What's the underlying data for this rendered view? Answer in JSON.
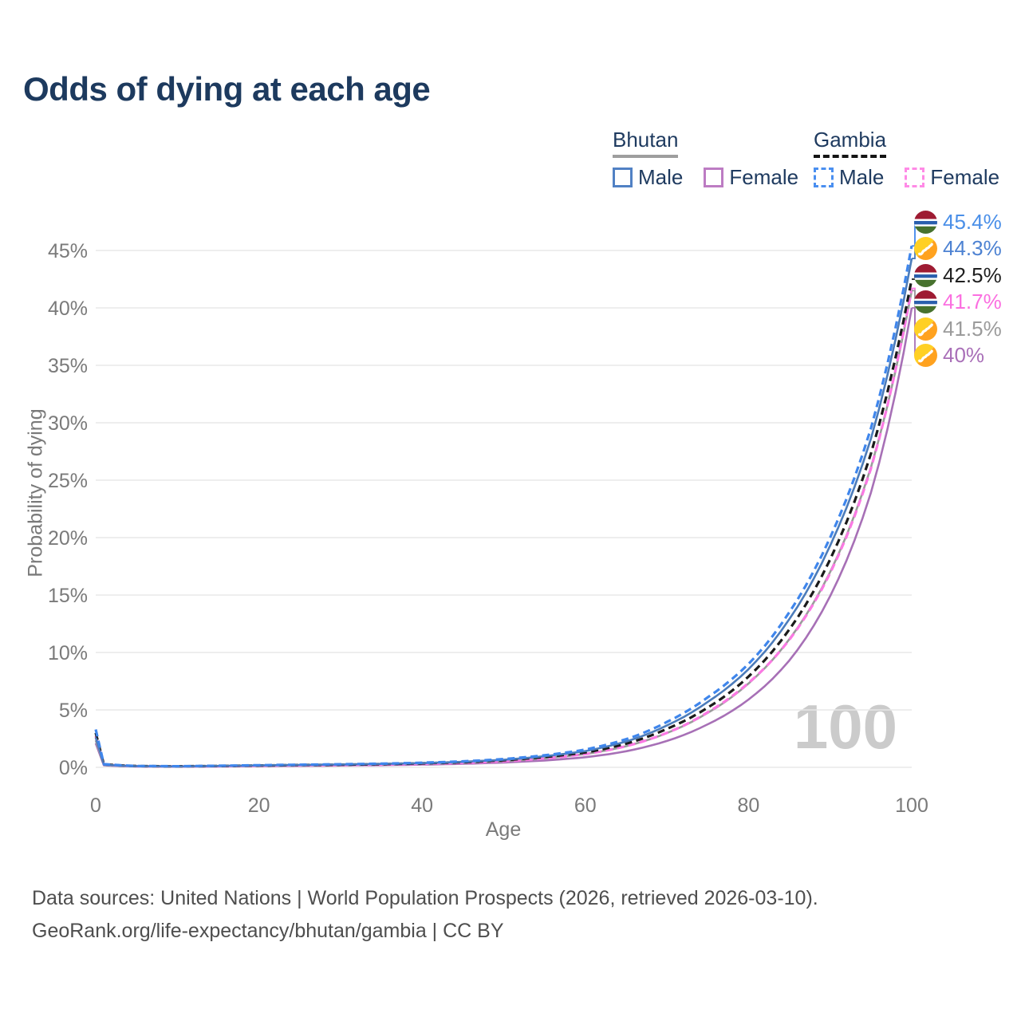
{
  "title": "Odds of dying at each age",
  "legend": {
    "groups": [
      {
        "country": "Bhutan",
        "underline": "solid",
        "underline_color": "#9e9e9e",
        "items": [
          {
            "label": "Male",
            "color": "#5181c4",
            "dashed": false
          },
          {
            "label": "Female",
            "color": "#bd7cc3",
            "dashed": false
          }
        ]
      },
      {
        "country": "Gambia",
        "underline": "dashed",
        "underline_color": "#141414",
        "items": [
          {
            "label": "Male",
            "color": "#4a8ff0",
            "dashed": true
          },
          {
            "label": "Female",
            "color": "#ff8ae6",
            "dashed": true
          }
        ]
      }
    ]
  },
  "axes": {
    "x_label": "Age",
    "y_label": "Probability of dying"
  },
  "watermark": "100",
  "footer": {
    "line1": "Data sources: United Nations | World Population Prospects (2026, retrieved 2026-03-10).",
    "line2": "GeoRank.org/life-expectancy/bhutan/gambia | CC BY"
  },
  "chart_data": {
    "type": "line",
    "title": "Odds of dying at each age",
    "xlabel": "Age",
    "ylabel": "Probability of dying",
    "xlim": [
      0,
      100
    ],
    "ylim": [
      0,
      47.5
    ],
    "x_ticks": [
      0,
      20,
      40,
      60,
      80,
      100
    ],
    "y_ticks_pct": [
      0,
      5,
      10,
      15,
      20,
      25,
      30,
      35,
      40,
      45
    ],
    "grid": true,
    "legend_position": "top-right",
    "ages": [
      0,
      1,
      5,
      10,
      15,
      20,
      25,
      30,
      35,
      40,
      45,
      50,
      55,
      60,
      65,
      70,
      75,
      80,
      85,
      90,
      95,
      100
    ],
    "series": [
      {
        "name": "Gambia Male",
        "country": "Gambia",
        "sex": "Male",
        "color": "#3f86ec",
        "dashed": true,
        "end_value": 45.4,
        "end_label": "45.4%",
        "label_color": "#4a8fe8",
        "flag": "gambia",
        "values": [
          3.3,
          0.28,
          0.12,
          0.1,
          0.14,
          0.19,
          0.23,
          0.27,
          0.32,
          0.4,
          0.52,
          0.72,
          1.05,
          1.55,
          2.45,
          3.95,
          6.1,
          9.0,
          13.5,
          20.0,
          29.5,
          45.4
        ]
      },
      {
        "name": "Bhutan Male",
        "country": "Bhutan",
        "sex": "Male",
        "color": "#4c7cba",
        "dashed": false,
        "end_value": 44.3,
        "end_label": "44.3%",
        "label_color": "#4d82d2",
        "flag": "bhutan",
        "values": [
          2.6,
          0.23,
          0.1,
          0.08,
          0.12,
          0.17,
          0.21,
          0.25,
          0.3,
          0.37,
          0.48,
          0.66,
          0.97,
          1.42,
          2.25,
          3.65,
          5.7,
          8.55,
          12.9,
          19.3,
          28.6,
          44.3
        ]
      },
      {
        "name": "Gambia Total",
        "country": "Gambia",
        "sex": "Both",
        "color": "#1a1a1a",
        "dashed": true,
        "end_value": 42.5,
        "end_label": "42.5%",
        "label_color": "#1f1f1f",
        "flag": "gambia",
        "values": [
          3.0,
          0.26,
          0.11,
          0.09,
          0.12,
          0.16,
          0.2,
          0.23,
          0.28,
          0.35,
          0.45,
          0.62,
          0.9,
          1.3,
          2.06,
          3.35,
          5.2,
          7.9,
          12.0,
          18.1,
          27.3,
          42.5
        ]
      },
      {
        "name": "Gambia Female",
        "country": "Gambia",
        "sex": "Female",
        "color": "#fb79e3",
        "dashed": true,
        "end_value": 41.7,
        "end_label": "41.7%",
        "label_color": "#fb6fe0",
        "flag": "gambia",
        "values": [
          2.7,
          0.24,
          0.1,
          0.08,
          0.1,
          0.14,
          0.17,
          0.2,
          0.24,
          0.3,
          0.39,
          0.53,
          0.78,
          1.15,
          1.85,
          3.0,
          4.8,
          7.35,
          11.1,
          16.9,
          26.0,
          41.7
        ]
      },
      {
        "name": "Bhutan Total",
        "country": "Bhutan",
        "sex": "Both",
        "color": "#9b9b9b",
        "dashed": false,
        "end_value": 41.5,
        "end_label": "41.5%",
        "label_color": "#9b9b9b",
        "flag": "bhutan",
        "values": [
          2.35,
          0.21,
          0.09,
          0.07,
          0.1,
          0.14,
          0.17,
          0.2,
          0.25,
          0.31,
          0.4,
          0.54,
          0.79,
          1.16,
          1.84,
          2.99,
          4.75,
          7.3,
          11.15,
          17.0,
          26.1,
          41.5
        ]
      },
      {
        "name": "Bhutan Female",
        "country": "Bhutan",
        "sex": "Female",
        "color": "#a770b6",
        "dashed": false,
        "end_value": 40.0,
        "end_label": "40%",
        "label_color": "#a96fb8",
        "flag": "bhutan",
        "values": [
          2.1,
          0.18,
          0.08,
          0.06,
          0.08,
          0.11,
          0.13,
          0.16,
          0.19,
          0.24,
          0.31,
          0.42,
          0.6,
          0.88,
          1.4,
          2.3,
          3.75,
          5.9,
          9.3,
          14.9,
          23.9,
          40.0
        ]
      }
    ]
  }
}
